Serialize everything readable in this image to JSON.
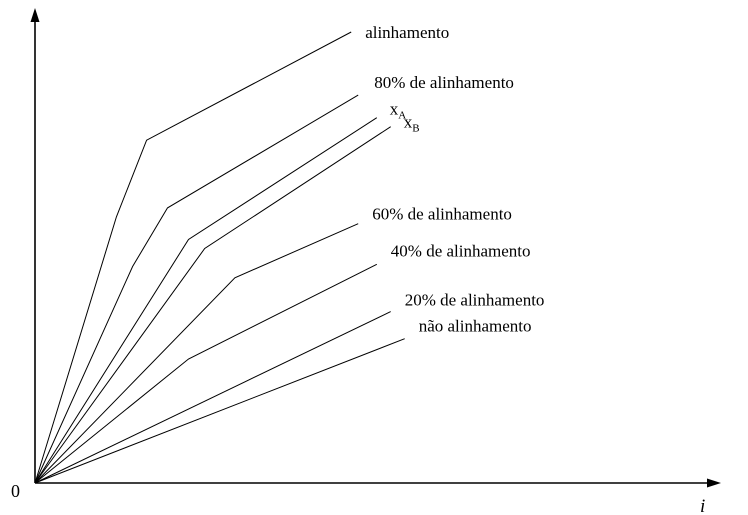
{
  "chart_data": {
    "type": "line",
    "title": "",
    "xlabel": "i",
    "ylabel": "",
    "origin_label": "0",
    "xlim": [
      0,
      100
    ],
    "ylim": [
      0,
      100
    ],
    "grid": false,
    "legend": "inline",
    "series": [
      {
        "name": "alinhamento",
        "label_main": "alinhamento",
        "label_sub": "",
        "points": [
          [
            0,
            0
          ],
          [
            17.5,
            59
          ],
          [
            24,
            76
          ],
          [
            68,
            100
          ]
        ]
      },
      {
        "name": "80% de alinhamento",
        "label_main": "80% de alinhamento",
        "label_sub": "",
        "points": [
          [
            0,
            0
          ],
          [
            21,
            48
          ],
          [
            28.5,
            61
          ],
          [
            69.5,
            86
          ]
        ]
      },
      {
        "name": "xA",
        "label_main": "x",
        "label_sub": "A",
        "points": [
          [
            0,
            0
          ],
          [
            33,
            54
          ],
          [
            73.5,
            81
          ]
        ]
      },
      {
        "name": "xB",
        "label_main": "x",
        "label_sub": "B",
        "points": [
          [
            0,
            0
          ],
          [
            36.5,
            52
          ],
          [
            76.5,
            79
          ]
        ]
      },
      {
        "name": "60% de alinhamento",
        "label_main": "60% de alinhamento",
        "label_sub": "",
        "points": [
          [
            0,
            0
          ],
          [
            43,
            45.5
          ],
          [
            69.5,
            57.5
          ]
        ]
      },
      {
        "name": "40% de alinhamento",
        "label_main": "40% de alinhamento",
        "label_sub": "",
        "points": [
          [
            0,
            0
          ],
          [
            33,
            27.5
          ],
          [
            73.5,
            48.5
          ]
        ]
      },
      {
        "name": "20% de alinhamento",
        "label_main": "20% de alinhamento",
        "label_sub": "",
        "points": [
          [
            0,
            0
          ],
          [
            76.5,
            38
          ]
        ]
      },
      {
        "name": "não alinhamento",
        "label_main": "não alinhamento",
        "label_sub": "",
        "points": [
          [
            0,
            0
          ],
          [
            79.5,
            32
          ]
        ]
      }
    ]
  }
}
